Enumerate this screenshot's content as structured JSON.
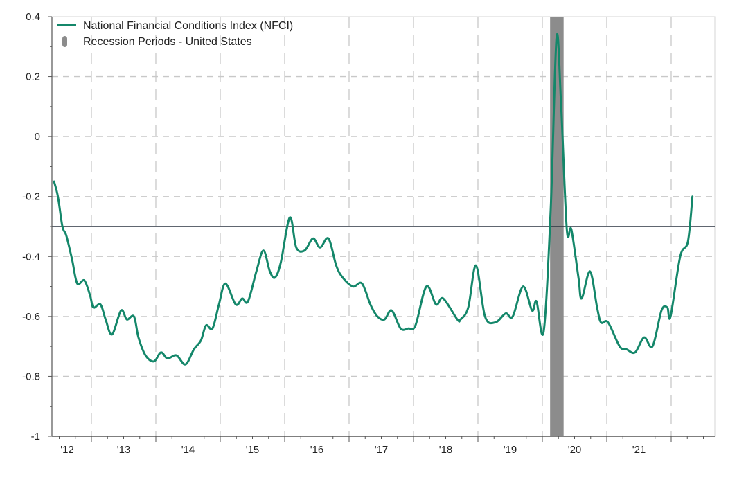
{
  "chart_data": {
    "type": "line",
    "title": "",
    "xlabel": "",
    "ylabel": "",
    "ylim": [
      -1,
      0.4
    ],
    "xlim": [
      2012.39,
      2022.68
    ],
    "yticks": [
      {
        "value": 0.4,
        "label": "0.4"
      },
      {
        "value": 0.2,
        "label": "0.2"
      },
      {
        "value": 0,
        "label": "0"
      },
      {
        "value": -0.2,
        "label": "-0.2"
      },
      {
        "value": -0.4,
        "label": "-0.4"
      },
      {
        "value": -0.6,
        "label": "-0.6"
      },
      {
        "value": -0.8,
        "label": "-0.8"
      },
      {
        "value": -1,
        "label": "-1"
      }
    ],
    "xticks": [
      {
        "year": 2012,
        "label": "'12"
      },
      {
        "year": 2013,
        "label": "'13"
      },
      {
        "year": 2014,
        "label": "'14"
      },
      {
        "year": 2015,
        "label": "'15"
      },
      {
        "year": 2016,
        "label": "'16"
      },
      {
        "year": 2017,
        "label": "'17"
      },
      {
        "year": 2018,
        "label": "'18"
      },
      {
        "year": 2019,
        "label": "'19"
      },
      {
        "year": 2020,
        "label": "'20"
      },
      {
        "year": 2021,
        "label": "'21"
      }
    ],
    "grid": true,
    "legend_position": "top-left",
    "reference_line": {
      "value": -0.3,
      "color": "#2b3440"
    },
    "recessions": [
      {
        "start": 2020.12,
        "end": 2020.33,
        "color": "#8c8c8c"
      }
    ],
    "legend": [
      {
        "label": "National  Financial  Conditions  Index  (NFCI)",
        "type": "line",
        "color": "#14876a"
      },
      {
        "label": "Recession  Periods  - United  States",
        "type": "bar",
        "color": "#8c8c8c"
      }
    ],
    "series": [
      {
        "name": "National Financial Conditions Index (NFCI)",
        "color": "#14876a",
        "x": [
          2012.42,
          2012.48,
          2012.55,
          2012.61,
          2012.7,
          2012.78,
          2012.89,
          2012.98,
          2013.03,
          2013.14,
          2013.22,
          2013.32,
          2013.46,
          2013.55,
          2013.66,
          2013.73,
          2013.84,
          2013.97,
          2014.08,
          2014.18,
          2014.32,
          2014.46,
          2014.59,
          2014.7,
          2014.78,
          2014.88,
          2014.98,
          2015.08,
          2015.24,
          2015.34,
          2015.43,
          2015.56,
          2015.67,
          2015.77,
          2015.85,
          2015.94,
          2016.08,
          2016.18,
          2016.31,
          2016.44,
          2016.55,
          2016.68,
          2016.8,
          2016.9,
          2017.06,
          2017.2,
          2017.33,
          2017.44,
          2017.55,
          2017.66,
          2017.8,
          2017.92,
          2018.03,
          2018.2,
          2018.35,
          2018.46,
          2018.68,
          2018.73,
          2018.85,
          2018.97,
          2019.11,
          2019.27,
          2019.43,
          2019.54,
          2019.7,
          2019.84,
          2019.91,
          2020.02,
          2020.13,
          2020.22,
          2020.29,
          2020.38,
          2020.45,
          2020.56,
          2020.61,
          2020.74,
          2020.85,
          2020.91,
          2021.02,
          2021.2,
          2021.31,
          2021.44,
          2021.58,
          2021.71,
          2021.85,
          2021.94,
          2021.99,
          2022.14,
          2022.26,
          2022.33
        ],
        "y": [
          -0.15,
          -0.2,
          -0.3,
          -0.33,
          -0.41,
          -0.49,
          -0.48,
          -0.53,
          -0.57,
          -0.56,
          -0.61,
          -0.66,
          -0.58,
          -0.61,
          -0.6,
          -0.67,
          -0.73,
          -0.75,
          -0.72,
          -0.74,
          -0.73,
          -0.76,
          -0.71,
          -0.68,
          -0.63,
          -0.64,
          -0.56,
          -0.49,
          -0.56,
          -0.54,
          -0.55,
          -0.45,
          -0.38,
          -0.45,
          -0.47,
          -0.42,
          -0.27,
          -0.37,
          -0.38,
          -0.34,
          -0.37,
          -0.34,
          -0.43,
          -0.47,
          -0.5,
          -0.49,
          -0.56,
          -0.6,
          -0.61,
          -0.58,
          -0.64,
          -0.64,
          -0.63,
          -0.5,
          -0.56,
          -0.54,
          -0.61,
          -0.61,
          -0.57,
          -0.43,
          -0.6,
          -0.62,
          -0.59,
          -0.6,
          -0.5,
          -0.58,
          -0.55,
          -0.65,
          -0.24,
          0.33,
          0.11,
          -0.31,
          -0.31,
          -0.47,
          -0.54,
          -0.45,
          -0.57,
          -0.62,
          -0.62,
          -0.7,
          -0.71,
          -0.72,
          -0.67,
          -0.7,
          -0.58,
          -0.57,
          -0.6,
          -0.4,
          -0.35,
          -0.2
        ]
      }
    ]
  }
}
